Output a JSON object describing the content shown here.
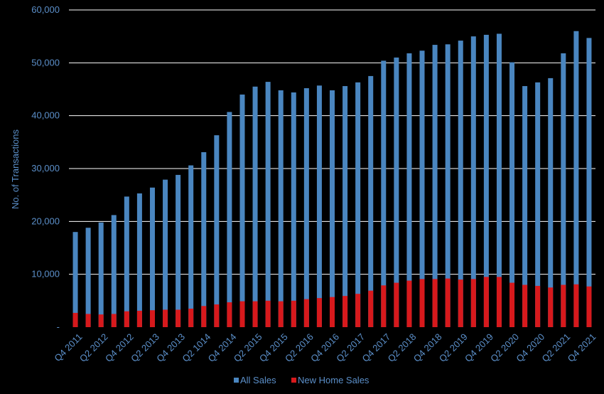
{
  "chart_data": {
    "type": "bar",
    "stacked": false,
    "overlay": true,
    "ylabel": "No. of Transactions",
    "ylim": [
      0,
      60000
    ],
    "y_ticks": [
      "-",
      "10,000",
      "20,000",
      "30,000",
      "40,000",
      "50,000",
      "60,000"
    ],
    "grid": true,
    "legend_position": "bottom",
    "categories": [
      "Q4 2011",
      "Q1 2012",
      "Q2 2012",
      "Q3 2012",
      "Q4 2012",
      "Q1 2013",
      "Q2 2013",
      "Q3 2013",
      "Q4 2013",
      "Q1 2014",
      "Q2 1014",
      "Q3 2014",
      "Q4 2014",
      "Q1 2015",
      "Q2 2015",
      "Q3 2015",
      "Q4 2015",
      "Q1 2016",
      "Q2 2016",
      "Q3 2016",
      "Q4 2016",
      "Q1 2017",
      "Q2 2017",
      "Q3 2017",
      "Q4 2017",
      "Q1 2018",
      "Q2 2018",
      "Q3 2018",
      "Q4 2018",
      "Q1 2019",
      "Q2 2019",
      "Q3 2019",
      "Q4 2019",
      "Q1 2020",
      "Q2 2020",
      "Q3 2020",
      "Q4 2020",
      "Q1 2021",
      "Q2 2021",
      "Q3 2021",
      "Q4 2021"
    ],
    "x_tick_labels": [
      "Q4 2011",
      "Q2 2012",
      "Q4 2012",
      "Q2 2013",
      "Q4 2013",
      "Q2 1014",
      "Q4 2014",
      "Q2 2015",
      "Q4 2015",
      "Q2 2016",
      "Q4 2016",
      "Q2 2017",
      "Q4 2017",
      "Q2 2018",
      "Q4 2018",
      "Q2 2019",
      "Q4 2019",
      "Q2 2020",
      "Q4 2020",
      "Q2 2021",
      "Q4 2021"
    ],
    "series": [
      {
        "name": "All Sales",
        "color": "#4a86c0",
        "values": [
          18000,
          18800,
          19800,
          21200,
          24700,
          25300,
          26400,
          27900,
          28800,
          30600,
          33100,
          36300,
          40700,
          44000,
          45500,
          46400,
          44800,
          44400,
          45200,
          45700,
          44800,
          45600,
          46300,
          47500,
          50400,
          51000,
          51800,
          52300,
          53400,
          53500,
          54200,
          55000,
          55300,
          55500,
          50100,
          45600,
          46300,
          47100,
          51800,
          56000,
          54700
        ]
      },
      {
        "name": "New Home Sales",
        "color": "#d7191c",
        "values": [
          2700,
          2500,
          2400,
          2500,
          3000,
          3100,
          3200,
          3300,
          3300,
          3500,
          4000,
          4300,
          4700,
          4900,
          4900,
          5000,
          4900,
          5000,
          5300,
          5500,
          5700,
          5900,
          6300,
          6900,
          7900,
          8400,
          8800,
          9100,
          9100,
          9200,
          9000,
          9100,
          9500,
          9500,
          8400,
          8000,
          7800,
          7500,
          8000,
          8100,
          7700
        ]
      }
    ]
  }
}
